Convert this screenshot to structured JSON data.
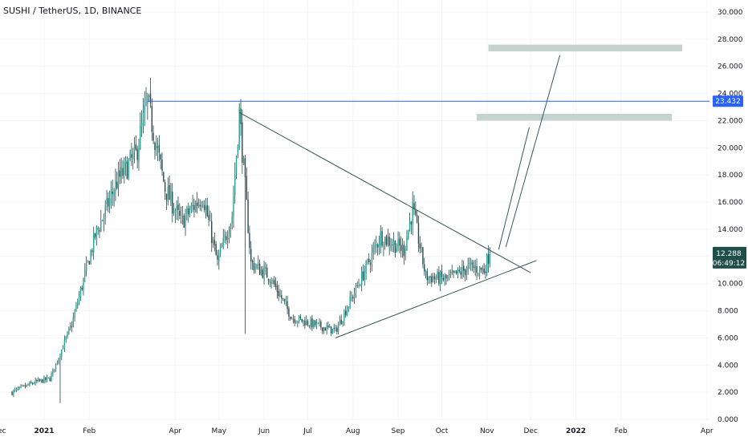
{
  "header": {
    "title": "SUSHI / TetherUS, 1D, BINANCE"
  },
  "chart_data": {
    "type": "candlestick",
    "title": "SUSHI / TetherUS, 1D, BINANCE",
    "ylim": [
      0,
      30
    ],
    "y_ticks": [
      "30.000",
      "28.000",
      "26.000",
      "24.000",
      "22.000",
      "20.000",
      "18.000",
      "16.000",
      "14.000",
      "12.000",
      "10.000",
      "8.000",
      "6.000",
      "4.000",
      "2.000",
      "0.000"
    ],
    "x_labels": [
      "Dec",
      "2021",
      "Feb",
      "Apr",
      "May",
      "Jun",
      "Jul",
      "Aug",
      "Sep",
      "Oct",
      "Nov",
      "Dec",
      "2022",
      "Feb",
      "Apr"
    ],
    "price_path": [
      {
        "date": "2020-12-10",
        "price": 2.0
      },
      {
        "date": "2020-12-25",
        "price": 2.7
      },
      {
        "date": "2021-01-05",
        "price": 3.0
      },
      {
        "date": "2021-01-20",
        "price": 7.0
      },
      {
        "date": "2021-02-05",
        "price": 13.5
      },
      {
        "date": "2021-02-20",
        "price": 17.5
      },
      {
        "date": "2021-03-05",
        "price": 19.5
      },
      {
        "date": "2021-03-13",
        "price": 23.4
      },
      {
        "date": "2021-03-25",
        "price": 17.0
      },
      {
        "date": "2021-04-05",
        "price": 14.5
      },
      {
        "date": "2021-04-20",
        "price": 16.5
      },
      {
        "date": "2021-04-30",
        "price": 11.5
      },
      {
        "date": "2021-05-10",
        "price": 15.0
      },
      {
        "date": "2021-05-15",
        "price": 22.6
      },
      {
        "date": "2021-05-23",
        "price": 11.5
      },
      {
        "date": "2021-06-05",
        "price": 10.5
      },
      {
        "date": "2021-06-20",
        "price": 7.5
      },
      {
        "date": "2021-07-05",
        "price": 7.0
      },
      {
        "date": "2021-07-20",
        "price": 6.5
      },
      {
        "date": "2021-08-05",
        "price": 10.0
      },
      {
        "date": "2021-08-20",
        "price": 13.5
      },
      {
        "date": "2021-09-05",
        "price": 12.5
      },
      {
        "date": "2021-09-11",
        "price": 15.5
      },
      {
        "date": "2021-09-20",
        "price": 10.5
      },
      {
        "date": "2021-10-05",
        "price": 10.3
      },
      {
        "date": "2021-10-20",
        "price": 11.2
      },
      {
        "date": "2021-10-30",
        "price": 11.0
      },
      {
        "date": "2021-11-03",
        "price": 12.288
      }
    ],
    "last_price": "12.288",
    "countdown": "06:49:12",
    "horizontal_level": {
      "value": 23.432,
      "label": "23.432"
    },
    "trendlines": [
      {
        "name": "descending",
        "points": [
          {
            "date": "2021-05-15",
            "price": 22.6
          },
          {
            "date": "2021-12-01",
            "price": 10.8
          }
        ]
      },
      {
        "name": "ascending",
        "points": [
          {
            "date": "2021-07-20",
            "price": 6.0
          },
          {
            "date": "2021-12-05",
            "price": 11.7
          }
        ]
      }
    ],
    "projection_arrows": [
      {
        "from": {
          "date": "2021-11-09",
          "price": 12.5
        },
        "to": {
          "date": "2021-11-30",
          "price": 21.5
        }
      },
      {
        "from": {
          "date": "2021-11-14",
          "price": 12.7
        },
        "to": {
          "date": "2021-12-21",
          "price": 26.8
        }
      }
    ],
    "target_zones": [
      {
        "from_date": "2021-10-25",
        "to_date": "2022-03-08",
        "price_low": 22.0,
        "price_high": 22.5
      },
      {
        "from_date": "2021-11-02",
        "to_date": "2022-03-15",
        "price_low": 27.1,
        "price_high": 27.6
      }
    ],
    "colors": {
      "up": "#26a69a",
      "down": "#2d4b4c",
      "candle": "#1e4a4a",
      "level": "#2962ff",
      "trendline": "#36595b",
      "zone": "#c5d3ce",
      "last_price_bg": "#1f4e4b"
    }
  }
}
